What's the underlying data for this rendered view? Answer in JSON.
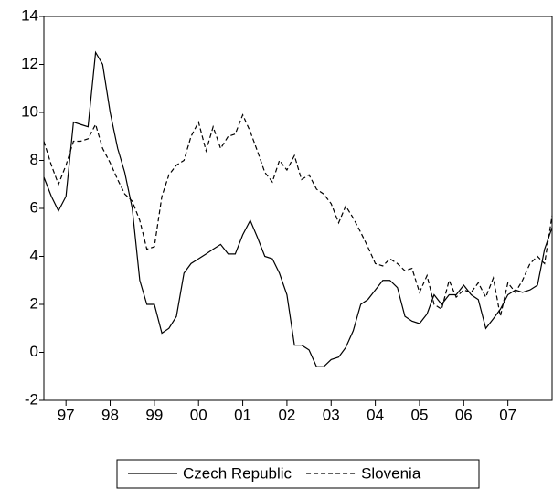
{
  "chart_data": {
    "type": "line",
    "x": [
      1997,
      1997.17,
      1997.33,
      1997.5,
      1997.67,
      1997.83,
      1998,
      1998.17,
      1998.33,
      1998.5,
      1998.67,
      1998.83,
      1999,
      1999.17,
      1999.33,
      1999.5,
      1999.67,
      1999.83,
      2000,
      2000.17,
      2000.33,
      2000.5,
      2000.67,
      2000.83,
      2001,
      2001.17,
      2001.33,
      2001.5,
      2001.67,
      2001.83,
      2002,
      2002.17,
      2002.33,
      2002.5,
      2002.67,
      2002.83,
      2003,
      2003.17,
      2003.33,
      2003.5,
      2003.67,
      2003.83,
      2004,
      2004.17,
      2004.33,
      2004.5,
      2004.67,
      2004.83,
      2005,
      2005.17,
      2005.33,
      2005.5,
      2005.67,
      2005.83,
      2006,
      2006.17,
      2006.33,
      2006.5,
      2006.67,
      2006.83,
      2007,
      2007.17,
      2007.33,
      2007.5,
      2007.67,
      2007.83,
      2008,
      2008.17,
      2008.33,
      2008.5
    ],
    "series": [
      {
        "name": "Czech Republic",
        "color": "#000000",
        "dash": "solid",
        "values": [
          7.3,
          6.5,
          5.9,
          6.5,
          9.6,
          9.5,
          9.4,
          12.5,
          12.0,
          10.0,
          8.5,
          7.5,
          6.0,
          3.0,
          2.0,
          2.0,
          0.8,
          1.0,
          1.5,
          3.3,
          3.7,
          3.9,
          4.1,
          4.3,
          4.5,
          4.1,
          4.1,
          4.9,
          5.5,
          4.8,
          4.0,
          3.9,
          3.3,
          2.4,
          0.3,
          0.3,
          0.1,
          -0.6,
          -0.6,
          -0.3,
          -0.2,
          0.2,
          0.9,
          2.0,
          2.2,
          2.6,
          3.0,
          3.0,
          2.7,
          1.5,
          1.3,
          1.2,
          1.6,
          2.4,
          2.0,
          2.4,
          2.4,
          2.8,
          2.4,
          2.2,
          1.0,
          1.4,
          1.8,
          2.4,
          2.6,
          2.5,
          2.6,
          2.8,
          4.3,
          5.2
        ]
      },
      {
        "name": "Slovenia",
        "color": "#000000",
        "dash": "dashed",
        "values": [
          8.8,
          7.8,
          7.0,
          7.8,
          8.8,
          8.8,
          8.9,
          9.5,
          8.5,
          7.9,
          7.2,
          6.6,
          6.3,
          5.5,
          4.3,
          4.4,
          6.5,
          7.4,
          7.8,
          8.0,
          9.0,
          9.6,
          8.4,
          9.4,
          8.5,
          9.0,
          9.1,
          9.9,
          9.2,
          8.4,
          7.5,
          7.1,
          8.0,
          7.6,
          8.2,
          7.2,
          7.4,
          6.8,
          6.6,
          6.2,
          5.4,
          6.1,
          5.6,
          5.0,
          4.4,
          3.7,
          3.6,
          3.9,
          3.7,
          3.4,
          3.5,
          2.5,
          3.2,
          2.0,
          1.8,
          3.0,
          2.3,
          2.6,
          2.5,
          2.9,
          2.3,
          3.1,
          1.5,
          2.9,
          2.5,
          3.0,
          3.7,
          4.0,
          3.7,
          5.7
        ]
      }
    ],
    "xlim": [
      1997,
      2008.5
    ],
    "xticks": [
      {
        "value": 1997.5,
        "label": "97"
      },
      {
        "value": 1998.5,
        "label": "98"
      },
      {
        "value": 1999.5,
        "label": "99"
      },
      {
        "value": 2000.5,
        "label": "00"
      },
      {
        "value": 2001.5,
        "label": "01"
      },
      {
        "value": 2002.5,
        "label": "02"
      },
      {
        "value": 2003.5,
        "label": "03"
      },
      {
        "value": 2004.5,
        "label": "04"
      },
      {
        "value": 2005.5,
        "label": "05"
      },
      {
        "value": 2006.5,
        "label": "06"
      },
      {
        "value": 2007.5,
        "label": "07"
      }
    ],
    "ylim": [
      -2,
      14
    ],
    "yticks": [
      -2,
      0,
      2,
      4,
      6,
      8,
      10,
      12,
      14
    ],
    "grid": false,
    "legend": "bottom"
  }
}
